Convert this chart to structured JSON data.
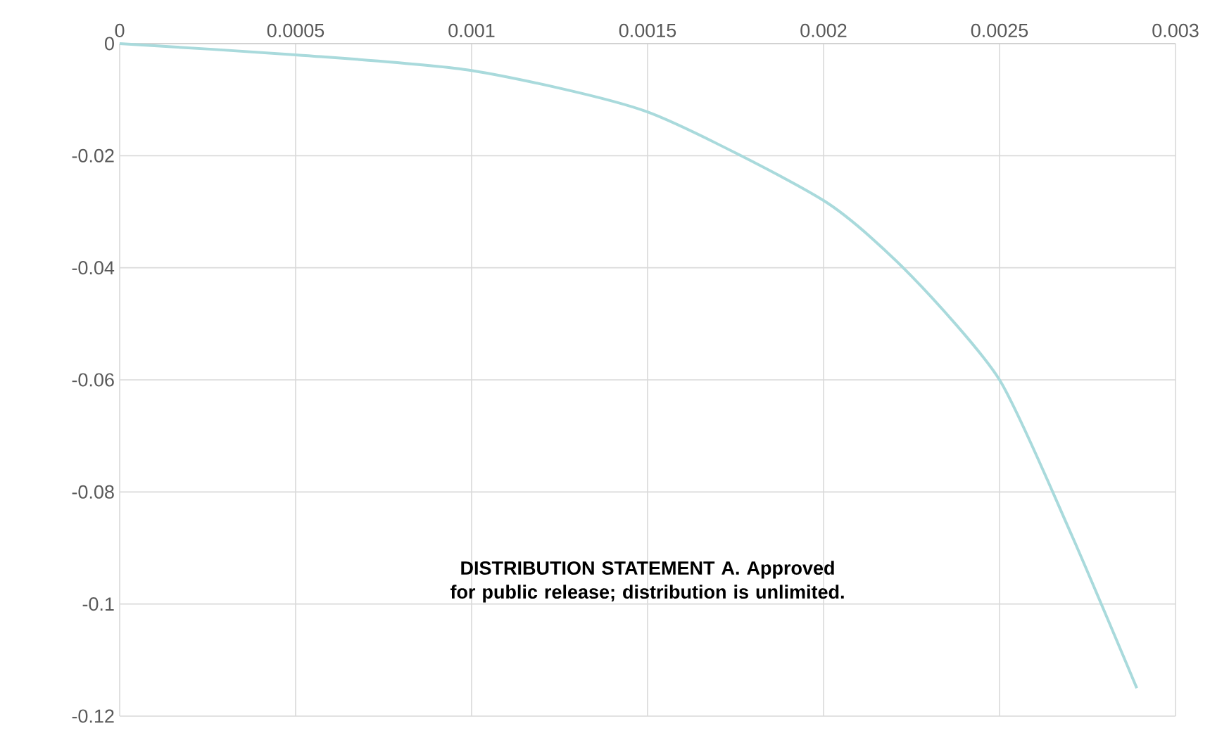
{
  "chart_data": {
    "type": "line",
    "x": [
      0,
      0.0005,
      0.001,
      0.0015,
      0.002,
      0.00225,
      0.0025,
      0.0027,
      0.00289
    ],
    "series": [
      {
        "color": "#a9dadc",
        "values": [
          0,
          -0.002,
          -0.0048,
          -0.0122,
          -0.028,
          -0.0415,
          -0.06,
          -0.087,
          -0.115
        ]
      }
    ],
    "xlim": [
      0,
      0.003
    ],
    "xticks": [
      0,
      0.0005,
      0.001,
      0.0015,
      0.002,
      0.0025,
      0.003
    ],
    "ylim": [
      -0.12,
      0
    ],
    "yticks": [
      -0.12,
      -0.1,
      -0.08,
      -0.06,
      -0.04,
      -0.02,
      0
    ],
    "grid": true,
    "marker": "none",
    "line_style": "solid",
    "annotations": [
      "DISTRIBUTION STATEMENT A. Approved for public release; distribution is unlimited."
    ]
  }
}
